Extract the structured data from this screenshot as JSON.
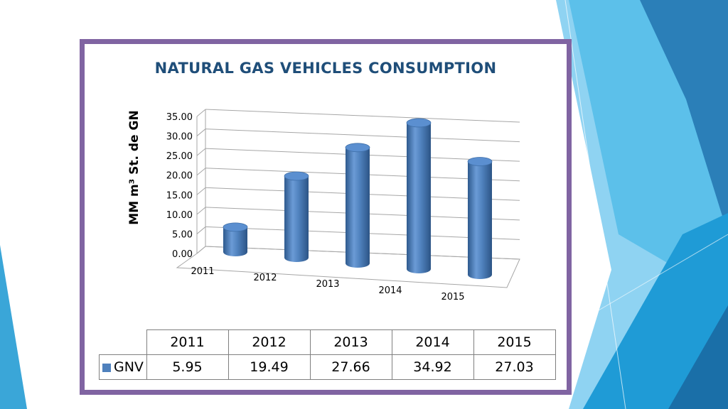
{
  "slide": {
    "title": "NATURAL GAS VEHICLES CONSUMPTION",
    "colors": {
      "frame": "#8064a2",
      "title": "#1f4e79",
      "bar": "#4f81bd"
    }
  },
  "chart_data": {
    "type": "bar",
    "style": "3d-cylinder",
    "title": "NATURAL GAS VEHICLES CONSUMPTION",
    "xlabel": "",
    "ylabel": "MM m³ St. de GN",
    "categories": [
      "2011",
      "2012",
      "2013",
      "2014",
      "2015"
    ],
    "series": [
      {
        "name": "GNV",
        "values": [
          5.95,
          19.49,
          27.66,
          34.92,
          27.03
        ]
      }
    ],
    "ylim": [
      0,
      35
    ],
    "yticks": [
      "0.00",
      "5.00",
      "10.00",
      "15.00",
      "20.00",
      "25.00",
      "30.00",
      "35.00"
    ],
    "grid": true,
    "legend": "data-table",
    "data_table": {
      "headers": [
        "2011",
        "2012",
        "2013",
        "2014",
        "2015"
      ],
      "row_label": "GNV",
      "row_values": [
        "5.95",
        "19.49",
        "27.66",
        "34.92",
        "27.03"
      ]
    }
  }
}
